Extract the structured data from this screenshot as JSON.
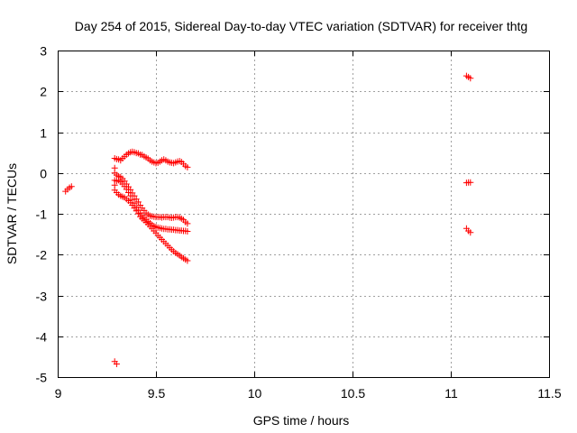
{
  "chart_data": {
    "type": "scatter",
    "title": "Day 254 of 2015, Sidereal Day-to-day VTEC variation (SDTVAR) for receiver thtg",
    "xlabel": "GPS time / hours",
    "ylabel": "SDTVAR / TECUs",
    "xlim": [
      9,
      11.5
    ],
    "ylim": [
      -5,
      3
    ],
    "xticks": [
      "9",
      "9.5",
      "10",
      "10.5",
      "11",
      "11.5"
    ],
    "yticks": [
      "-5",
      "-4",
      "-3",
      "-2",
      "-1",
      "0",
      "1",
      "2",
      "3"
    ],
    "grid": true,
    "marker": "+",
    "color": "#ff0000",
    "series": [
      {
        "points": [
          [
            9.04,
            -0.45
          ],
          [
            9.05,
            -0.4
          ],
          [
            9.06,
            -0.36
          ],
          [
            9.07,
            -0.33
          ],
          [
            9.29,
            0.36
          ],
          [
            9.3,
            0.34
          ],
          [
            9.31,
            0.33
          ],
          [
            9.32,
            0.31
          ],
          [
            9.33,
            0.36
          ],
          [
            9.34,
            0.4
          ],
          [
            9.35,
            0.45
          ],
          [
            9.36,
            0.48
          ],
          [
            9.37,
            0.51
          ],
          [
            9.38,
            0.52
          ],
          [
            9.39,
            0.51
          ],
          [
            9.4,
            0.49
          ],
          [
            9.41,
            0.48
          ],
          [
            9.42,
            0.45
          ],
          [
            9.43,
            0.44
          ],
          [
            9.44,
            0.41
          ],
          [
            9.45,
            0.38
          ],
          [
            9.46,
            0.35
          ],
          [
            9.47,
            0.31
          ],
          [
            9.48,
            0.28
          ],
          [
            9.49,
            0.26
          ],
          [
            9.5,
            0.24
          ],
          [
            9.51,
            0.25
          ],
          [
            9.52,
            0.28
          ],
          [
            9.53,
            0.31
          ],
          [
            9.54,
            0.33
          ],
          [
            9.55,
            0.31
          ],
          [
            9.56,
            0.28
          ],
          [
            9.57,
            0.26
          ],
          [
            9.58,
            0.25
          ],
          [
            9.59,
            0.24
          ],
          [
            9.6,
            0.26
          ],
          [
            9.61,
            0.28
          ],
          [
            9.62,
            0.29
          ],
          [
            9.63,
            0.27
          ],
          [
            9.64,
            0.22
          ],
          [
            9.65,
            0.17
          ],
          [
            9.66,
            0.14
          ],
          [
            9.29,
            0.12
          ],
          [
            9.29,
            0.0
          ],
          [
            9.29,
            -0.18
          ],
          [
            9.3,
            -0.05
          ],
          [
            9.31,
            -0.08
          ],
          [
            9.32,
            -0.1
          ],
          [
            9.33,
            -0.14
          ],
          [
            9.34,
            -0.2
          ],
          [
            9.35,
            -0.27
          ],
          [
            9.36,
            -0.34
          ],
          [
            9.37,
            -0.41
          ],
          [
            9.38,
            -0.49
          ],
          [
            9.39,
            -0.56
          ],
          [
            9.4,
            -0.64
          ],
          [
            9.41,
            -0.71
          ],
          [
            9.42,
            -0.79
          ],
          [
            9.43,
            -0.86
          ],
          [
            9.44,
            -0.92
          ],
          [
            9.45,
            -0.98
          ],
          [
            9.46,
            -1.02
          ],
          [
            9.47,
            -1.05
          ],
          [
            9.48,
            -1.06
          ],
          [
            9.49,
            -1.07
          ],
          [
            9.5,
            -1.08
          ],
          [
            9.51,
            -1.08
          ],
          [
            9.52,
            -1.08
          ],
          [
            9.53,
            -1.09
          ],
          [
            9.54,
            -1.08
          ],
          [
            9.55,
            -1.08
          ],
          [
            9.56,
            -1.08
          ],
          [
            9.57,
            -1.09
          ],
          [
            9.58,
            -1.1
          ],
          [
            9.59,
            -1.09
          ],
          [
            9.6,
            -1.08
          ],
          [
            9.61,
            -1.08
          ],
          [
            9.62,
            -1.09
          ],
          [
            9.63,
            -1.12
          ],
          [
            9.64,
            -1.15
          ],
          [
            9.65,
            -1.2
          ],
          [
            9.66,
            -1.24
          ],
          [
            9.29,
            -0.3
          ],
          [
            9.3,
            -0.2
          ],
          [
            9.31,
            -0.18
          ],
          [
            9.32,
            -0.22
          ],
          [
            9.33,
            -0.27
          ],
          [
            9.34,
            -0.33
          ],
          [
            9.35,
            -0.4
          ],
          [
            9.36,
            -0.48
          ],
          [
            9.37,
            -0.56
          ],
          [
            9.38,
            -0.65
          ],
          [
            9.39,
            -0.74
          ],
          [
            9.4,
            -0.83
          ],
          [
            9.41,
            -0.91
          ],
          [
            9.42,
            -0.98
          ],
          [
            9.43,
            -1.04
          ],
          [
            9.44,
            -1.09
          ],
          [
            9.45,
            -1.14
          ],
          [
            9.46,
            -1.19
          ],
          [
            9.47,
            -1.23
          ],
          [
            9.48,
            -1.27
          ],
          [
            9.49,
            -1.3
          ],
          [
            9.5,
            -1.32
          ],
          [
            9.51,
            -1.34
          ],
          [
            9.52,
            -1.35
          ],
          [
            9.53,
            -1.36
          ],
          [
            9.54,
            -1.37
          ],
          [
            9.55,
            -1.37
          ],
          [
            9.56,
            -1.38
          ],
          [
            9.57,
            -1.38
          ],
          [
            9.58,
            -1.39
          ],
          [
            9.59,
            -1.39
          ],
          [
            9.6,
            -1.4
          ],
          [
            9.61,
            -1.4
          ],
          [
            9.62,
            -1.41
          ],
          [
            9.63,
            -1.41
          ],
          [
            9.64,
            -1.42
          ],
          [
            9.65,
            -1.42
          ],
          [
            9.66,
            -1.43
          ],
          [
            9.29,
            -0.42
          ],
          [
            9.3,
            -0.48
          ],
          [
            9.31,
            -0.53
          ],
          [
            9.32,
            -0.56
          ],
          [
            9.33,
            -0.58
          ],
          [
            9.34,
            -0.6
          ],
          [
            9.35,
            -0.64
          ],
          [
            9.36,
            -0.68
          ],
          [
            9.37,
            -0.73
          ],
          [
            9.38,
            -0.79
          ],
          [
            9.39,
            -0.86
          ],
          [
            9.4,
            -0.93
          ],
          [
            9.41,
            -1.0
          ],
          [
            9.42,
            -1.07
          ],
          [
            9.43,
            -1.12
          ],
          [
            9.44,
            -1.16
          ],
          [
            9.45,
            -1.21
          ],
          [
            9.46,
            -1.26
          ],
          [
            9.47,
            -1.31
          ],
          [
            9.48,
            -1.36
          ],
          [
            9.49,
            -1.42
          ],
          [
            9.5,
            -1.47
          ],
          [
            9.51,
            -1.53
          ],
          [
            9.52,
            -1.58
          ],
          [
            9.53,
            -1.63
          ],
          [
            9.54,
            -1.68
          ],
          [
            9.55,
            -1.73
          ],
          [
            9.56,
            -1.78
          ],
          [
            9.57,
            -1.83
          ],
          [
            9.58,
            -1.88
          ],
          [
            9.59,
            -1.92
          ],
          [
            9.6,
            -1.96
          ],
          [
            9.61,
            -1.99
          ],
          [
            9.62,
            -2.02
          ],
          [
            9.63,
            -2.06
          ],
          [
            9.64,
            -2.09
          ],
          [
            9.65,
            -2.12
          ],
          [
            9.66,
            -2.15
          ],
          [
            9.29,
            -4.62
          ],
          [
            9.3,
            -4.68
          ],
          [
            11.08,
            2.38
          ],
          [
            11.09,
            2.35
          ],
          [
            11.1,
            2.32
          ],
          [
            11.08,
            -0.24
          ],
          [
            11.09,
            -0.23
          ],
          [
            11.1,
            -0.23
          ],
          [
            11.08,
            -1.36
          ],
          [
            11.09,
            -1.42
          ],
          [
            11.1,
            -1.46
          ]
        ]
      }
    ]
  }
}
